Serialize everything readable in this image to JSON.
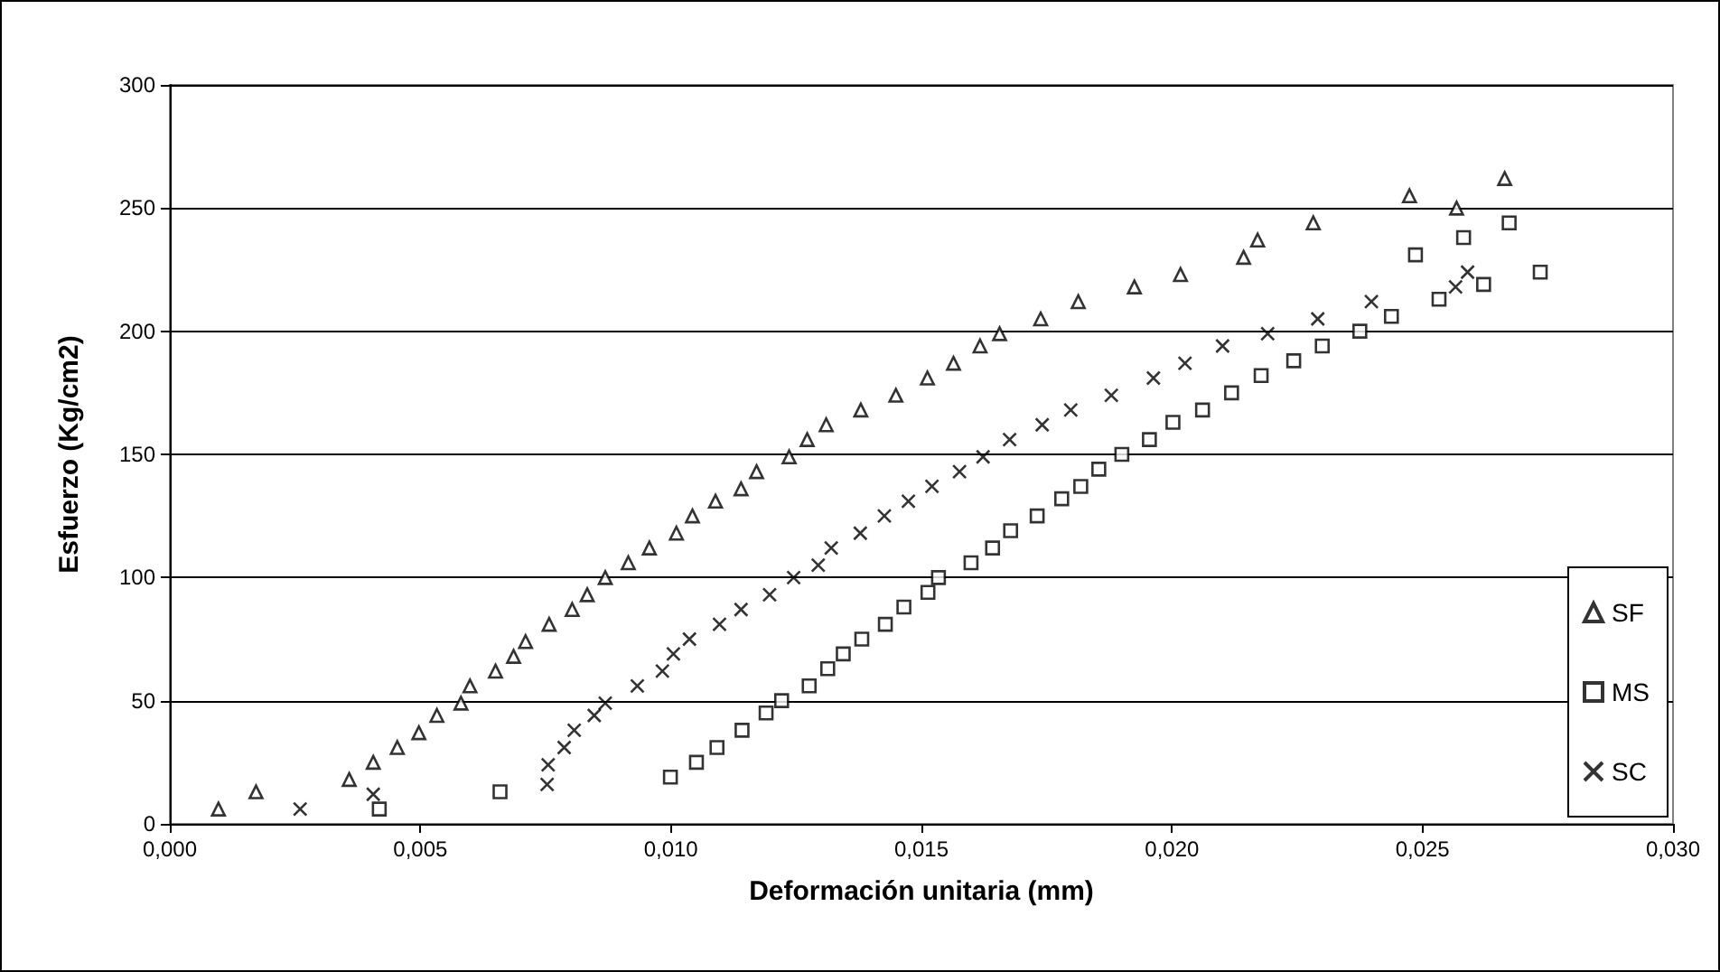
{
  "chart_data": {
    "type": "scatter",
    "xlabel": "Deformación unitaria (mm)",
    "ylabel": "Esfuerzo (Kg/cm2)",
    "xlim": [
      0,
      0.03
    ],
    "xticks": [
      {
        "value": 0,
        "label": "0,000"
      },
      {
        "value": 0.005,
        "label": "0,005"
      },
      {
        "value": 0.01,
        "label": "0,010"
      },
      {
        "value": 0.015,
        "label": "0,015"
      },
      {
        "value": 0.02,
        "label": "0,020"
      },
      {
        "value": 0.025,
        "label": "0,025"
      },
      {
        "value": 0.03,
        "label": "0,030"
      }
    ],
    "ylim": [
      0,
      300
    ],
    "yticks": [
      0,
      50,
      100,
      150,
      200,
      250,
      300
    ],
    "grid": "y",
    "legend": "bottom right",
    "series": [
      {
        "name": "SF",
        "color": "#000000",
        "marker": "triangle",
        "x": [
          0.00097,
          0.00172,
          0.00358,
          0.00406,
          0.00454,
          0.00497,
          0.00533,
          0.00581,
          0.00599,
          0.0065,
          0.00686,
          0.0071,
          0.00757,
          0.00803,
          0.00833,
          0.00869,
          0.00915,
          0.00957,
          0.01011,
          0.01043,
          0.01089,
          0.0114,
          0.01171,
          0.01236,
          0.01272,
          0.0131,
          0.01379,
          0.01449,
          0.01512,
          0.01564,
          0.01617,
          0.01656,
          0.01738,
          0.01813,
          0.01925,
          0.02017,
          0.02143,
          0.02171,
          0.02282,
          0.02474,
          0.02568,
          0.02664
        ],
        "values": [
          6,
          13,
          18,
          25,
          31,
          37,
          44,
          49,
          56,
          62,
          68,
          74,
          81,
          87,
          93,
          100,
          106,
          112,
          118,
          125,
          131,
          136,
          143,
          149,
          156,
          162,
          168,
          174,
          181,
          187,
          194,
          199,
          205,
          212,
          218,
          223,
          230,
          237,
          244,
          255,
          250,
          262
        ]
      },
      {
        "name": "MS",
        "color": "#000000",
        "marker": "square",
        "x": [
          0.00418,
          0.00659,
          0.00999,
          0.01051,
          0.01092,
          0.01142,
          0.0119,
          0.01221,
          0.01276,
          0.01313,
          0.01344,
          0.01381,
          0.01428,
          0.01465,
          0.01513,
          0.01534,
          0.01599,
          0.01642,
          0.01678,
          0.01731,
          0.0178,
          0.01818,
          0.01854,
          0.019,
          0.01955,
          0.02002,
          0.02061,
          0.02119,
          0.02178,
          0.02243,
          0.023,
          0.02375,
          0.02438,
          0.02533,
          0.02622,
          0.02486,
          0.02582,
          0.02673,
          0.02735
        ],
        "values": [
          6,
          13,
          19,
          25,
          31,
          38,
          45,
          50,
          56,
          63,
          69,
          75,
          81,
          88,
          94,
          100,
          106,
          112,
          119,
          125,
          132,
          137,
          144,
          150,
          156,
          163,
          168,
          175,
          182,
          188,
          194,
          200,
          206,
          213,
          219,
          231,
          238,
          244,
          224
        ]
      },
      {
        "name": "SC",
        "color": "#000000",
        "marker": "cross",
        "x": [
          0.0026,
          0.00406,
          0.00753,
          0.00755,
          0.00787,
          0.00807,
          0.00847,
          0.00869,
          0.00933,
          0.00983,
          0.01005,
          0.01037,
          0.01097,
          0.0114,
          0.01197,
          0.01245,
          0.01294,
          0.0132,
          0.01378,
          0.01426,
          0.01474,
          0.01521,
          0.01576,
          0.01623,
          0.01676,
          0.01741,
          0.01798,
          0.01879,
          0.01963,
          0.02026,
          0.02101,
          0.02191,
          0.02291,
          0.02398,
          0.02566,
          0.0259
        ],
        "values": [
          6,
          12,
          16,
          24,
          31,
          38,
          44,
          49,
          56,
          62,
          69,
          75,
          81,
          87,
          93,
          100,
          105,
          112,
          118,
          125,
          131,
          137,
          143,
          149,
          156,
          162,
          168,
          174,
          181,
          187,
          194,
          199,
          205,
          212,
          218,
          224
        ]
      }
    ]
  }
}
